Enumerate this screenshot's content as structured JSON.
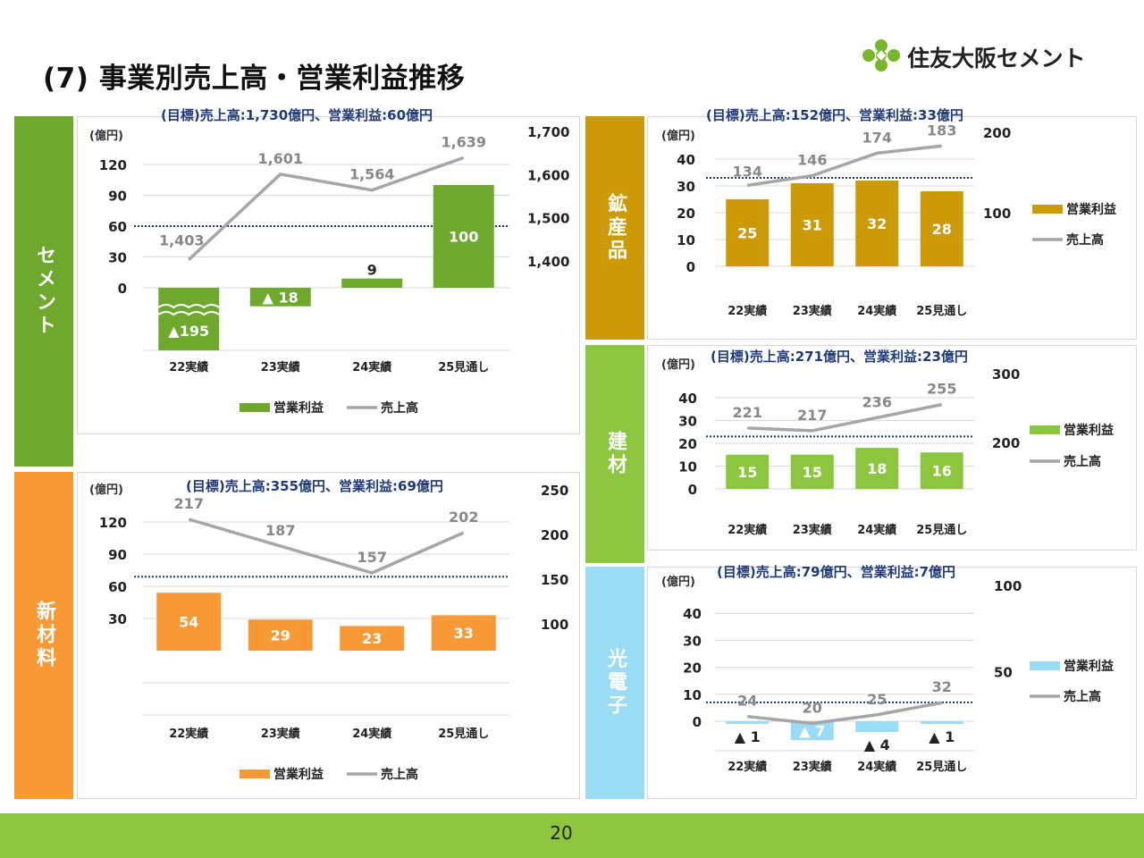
{
  "page": {
    "title": "(7) 事業別売上高・営業利益推移",
    "logo_text": "住友大阪セメント",
    "page_number": "20",
    "colors": {
      "footer": "#8cc63f",
      "target_text": "#1f3a78",
      "sales_line": "#a6a6a6",
      "logo": "#78b729"
    }
  },
  "sections": {
    "cement": {
      "label": "セメント",
      "color": "#6ea92e"
    },
    "minerals": {
      "label": "鉱産品",
      "color": "#cc9a06"
    },
    "materials": {
      "label": "新材料",
      "color": "#f79a36"
    },
    "building": {
      "label": "建材",
      "color": "#8cc63f"
    },
    "opto": {
      "label": "光電子",
      "color": "#99dcf4"
    }
  },
  "chart_data": [
    {
      "id": "cement",
      "type": "bar",
      "annotation": "(目標)売上高:1,730億円、営業利益:60億円",
      "categories": [
        "22実績",
        "23実績",
        "24実績",
        "25見通し"
      ],
      "unit_label": "(億円)",
      "series": [
        {
          "name": "営業利益",
          "axis": "left",
          "type": "bar",
          "color": "#6ea92e",
          "values": [
            -195,
            -18,
            9,
            100
          ],
          "labels": [
            "▲195",
            "▲ 18",
            "9",
            "100"
          ]
        },
        {
          "name": "売上高",
          "axis": "right",
          "type": "line",
          "color": "#a6a6a6",
          "values": [
            1403,
            1601,
            1564,
            1639
          ],
          "labels": [
            "1,403",
            "1,601",
            "1,564",
            "1,639"
          ]
        }
      ],
      "left_ticks": [
        "0",
        "30",
        "60",
        "90",
        "120"
      ],
      "right_ticks": [
        "1,400",
        "1,500",
        "1,600",
        "1,700"
      ],
      "target_profit": 60,
      "axis_break": true,
      "legend_position": "bottom"
    },
    {
      "id": "minerals",
      "type": "bar",
      "annotation": "(目標)売上高:152億円、営業利益:33億円",
      "categories": [
        "22実績",
        "23実績",
        "24実績",
        "25見通し"
      ],
      "unit_label": "(億円)",
      "series": [
        {
          "name": "営業利益",
          "axis": "left",
          "type": "bar",
          "color": "#cc9a06",
          "values": [
            25,
            31,
            32,
            28
          ],
          "labels": [
            "25",
            "31",
            "32",
            "28"
          ]
        },
        {
          "name": "売上高",
          "axis": "right",
          "type": "line",
          "color": "#a6a6a6",
          "values": [
            134,
            146,
            174,
            183
          ],
          "labels": [
            "134",
            "146",
            "174",
            "183"
          ]
        }
      ],
      "left_ticks": [
        "0",
        "10",
        "20",
        "30",
        "40"
      ],
      "right_ticks": [
        "100",
        "200"
      ],
      "target_profit": 33,
      "legend_position": "right"
    },
    {
      "id": "materials",
      "type": "bar",
      "annotation": "(目標)売上高:355億円、営業利益:69億円",
      "categories": [
        "22実績",
        "23実績",
        "24実績",
        "25見通し"
      ],
      "unit_label": "(億円)",
      "series": [
        {
          "name": "営業利益",
          "axis": "left",
          "type": "bar",
          "color": "#f79a36",
          "values": [
            54,
            29,
            23,
            33
          ],
          "labels": [
            "54",
            "29",
            "23",
            "33"
          ]
        },
        {
          "name": "売上高",
          "axis": "right",
          "type": "line",
          "color": "#a6a6a6",
          "values": [
            217,
            187,
            157,
            202
          ],
          "labels": [
            "217",
            "187",
            "157",
            "202"
          ]
        }
      ],
      "left_ticks": [
        "30",
        "60",
        "90",
        "120"
      ],
      "right_ticks": [
        "100",
        "150",
        "200",
        "250"
      ],
      "target_profit": 69,
      "legend_position": "bottom"
    },
    {
      "id": "building",
      "type": "bar",
      "annotation": "(目標)売上高:271億円、営業利益:23億円",
      "categories": [
        "22実績",
        "23実績",
        "24実績",
        "25見通し"
      ],
      "unit_label": "(億円)",
      "series": [
        {
          "name": "営業利益",
          "axis": "left",
          "type": "bar",
          "color": "#8cc63f",
          "values": [
            15,
            15,
            18,
            16
          ],
          "labels": [
            "15",
            "15",
            "18",
            "16"
          ]
        },
        {
          "name": "売上高",
          "axis": "right",
          "type": "line",
          "color": "#a6a6a6",
          "values": [
            221,
            217,
            236,
            255
          ],
          "labels": [
            "221",
            "217",
            "236",
            "255"
          ]
        }
      ],
      "left_ticks": [
        "0",
        "10",
        "20",
        "30",
        "40"
      ],
      "right_ticks": [
        "200",
        "300"
      ],
      "target_profit": 23,
      "legend_position": "right"
    },
    {
      "id": "opto",
      "type": "bar",
      "annotation": "(目標)売上高:79億円、営業利益:7億円",
      "categories": [
        "22実績",
        "23実績",
        "24実績",
        "25見通し"
      ],
      "unit_label": "(億円)",
      "series": [
        {
          "name": "営業利益",
          "axis": "left",
          "type": "bar",
          "color": "#99dcf4",
          "values": [
            -1,
            -7,
            -4,
            -1
          ],
          "labels": [
            "▲ 1",
            "▲ 7",
            "▲ 4",
            "▲ 1"
          ]
        },
        {
          "name": "売上高",
          "axis": "right",
          "type": "line",
          "color": "#a6a6a6",
          "values": [
            24,
            20,
            25,
            32
          ],
          "labels": [
            "24",
            "20",
            "25",
            "32"
          ]
        }
      ],
      "left_ticks": [
        "0",
        "10",
        "20",
        "30",
        "40"
      ],
      "right_ticks": [
        "50",
        "100"
      ],
      "target_profit": 7,
      "legend_position": "right"
    }
  ]
}
